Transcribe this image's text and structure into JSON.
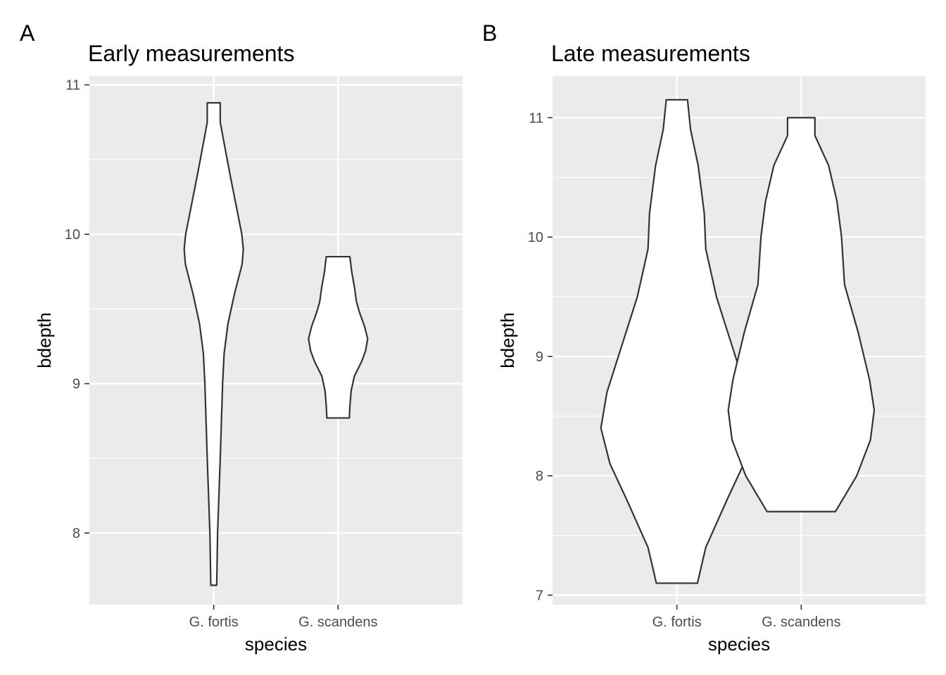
{
  "chart_data": [
    {
      "type": "violin",
      "tag": "A",
      "title": "Early measurements",
      "xlabel": "species",
      "ylabel": "bdepth",
      "categories": [
        "G. fortis",
        "G. scandens"
      ],
      "y_ticks": [
        "8",
        "9",
        "10",
        "11"
      ],
      "ylim": [
        7.52,
        11.06
      ],
      "grid": true,
      "series": [
        {
          "category": "G. fortis",
          "range": [
            7.65,
            10.88
          ],
          "density_profile": [
            [
              7.65,
              0.1
            ],
            [
              8.0,
              0.13
            ],
            [
              8.5,
              0.22
            ],
            [
              9.0,
              0.3
            ],
            [
              9.2,
              0.35
            ],
            [
              9.4,
              0.48
            ],
            [
              9.6,
              0.7
            ],
            [
              9.8,
              0.96
            ],
            [
              9.9,
              1.0
            ],
            [
              10.0,
              0.95
            ],
            [
              10.2,
              0.75
            ],
            [
              10.4,
              0.55
            ],
            [
              10.6,
              0.36
            ],
            [
              10.75,
              0.22
            ],
            [
              10.88,
              0.22
            ]
          ]
        },
        {
          "category": "G. scandens",
          "range": [
            8.77,
            9.85
          ],
          "density_profile": [
            [
              8.77,
              0.38
            ],
            [
              8.85,
              0.4
            ],
            [
              8.95,
              0.44
            ],
            [
              9.05,
              0.55
            ],
            [
              9.15,
              0.8
            ],
            [
              9.22,
              0.93
            ],
            [
              9.3,
              1.0
            ],
            [
              9.38,
              0.9
            ],
            [
              9.48,
              0.72
            ],
            [
              9.55,
              0.62
            ],
            [
              9.65,
              0.55
            ],
            [
              9.75,
              0.46
            ],
            [
              9.85,
              0.4
            ]
          ]
        }
      ]
    },
    {
      "type": "violin",
      "tag": "B",
      "title": "Late measurements",
      "xlabel": "species",
      "ylabel": "bdepth",
      "categories": [
        "G. fortis",
        "G. scandens"
      ],
      "y_ticks": [
        "7",
        "8",
        "9",
        "10",
        "11"
      ],
      "ylim": [
        6.92,
        11.35
      ],
      "grid": true,
      "series": [
        {
          "category": "G. fortis",
          "range": [
            7.1,
            11.15
          ],
          "density_profile": [
            [
              7.1,
              0.27
            ],
            [
              7.4,
              0.38
            ],
            [
              7.8,
              0.66
            ],
            [
              8.1,
              0.88
            ],
            [
              8.4,
              1.0
            ],
            [
              8.7,
              0.92
            ],
            [
              9.1,
              0.72
            ],
            [
              9.5,
              0.52
            ],
            [
              9.9,
              0.38
            ],
            [
              10.2,
              0.36
            ],
            [
              10.6,
              0.28
            ],
            [
              10.9,
              0.18
            ],
            [
              11.15,
              0.14
            ]
          ]
        },
        {
          "category": "G. scandens",
          "range": [
            7.7,
            11.0
          ],
          "density_profile": [
            [
              7.7,
              0.45
            ],
            [
              8.0,
              0.73
            ],
            [
              8.3,
              0.91
            ],
            [
              8.55,
              0.96
            ],
            [
              8.8,
              0.9
            ],
            [
              9.2,
              0.75
            ],
            [
              9.6,
              0.57
            ],
            [
              10.0,
              0.53
            ],
            [
              10.3,
              0.47
            ],
            [
              10.6,
              0.36
            ],
            [
              10.85,
              0.18
            ],
            [
              11.0,
              0.18
            ]
          ]
        }
      ]
    }
  ]
}
